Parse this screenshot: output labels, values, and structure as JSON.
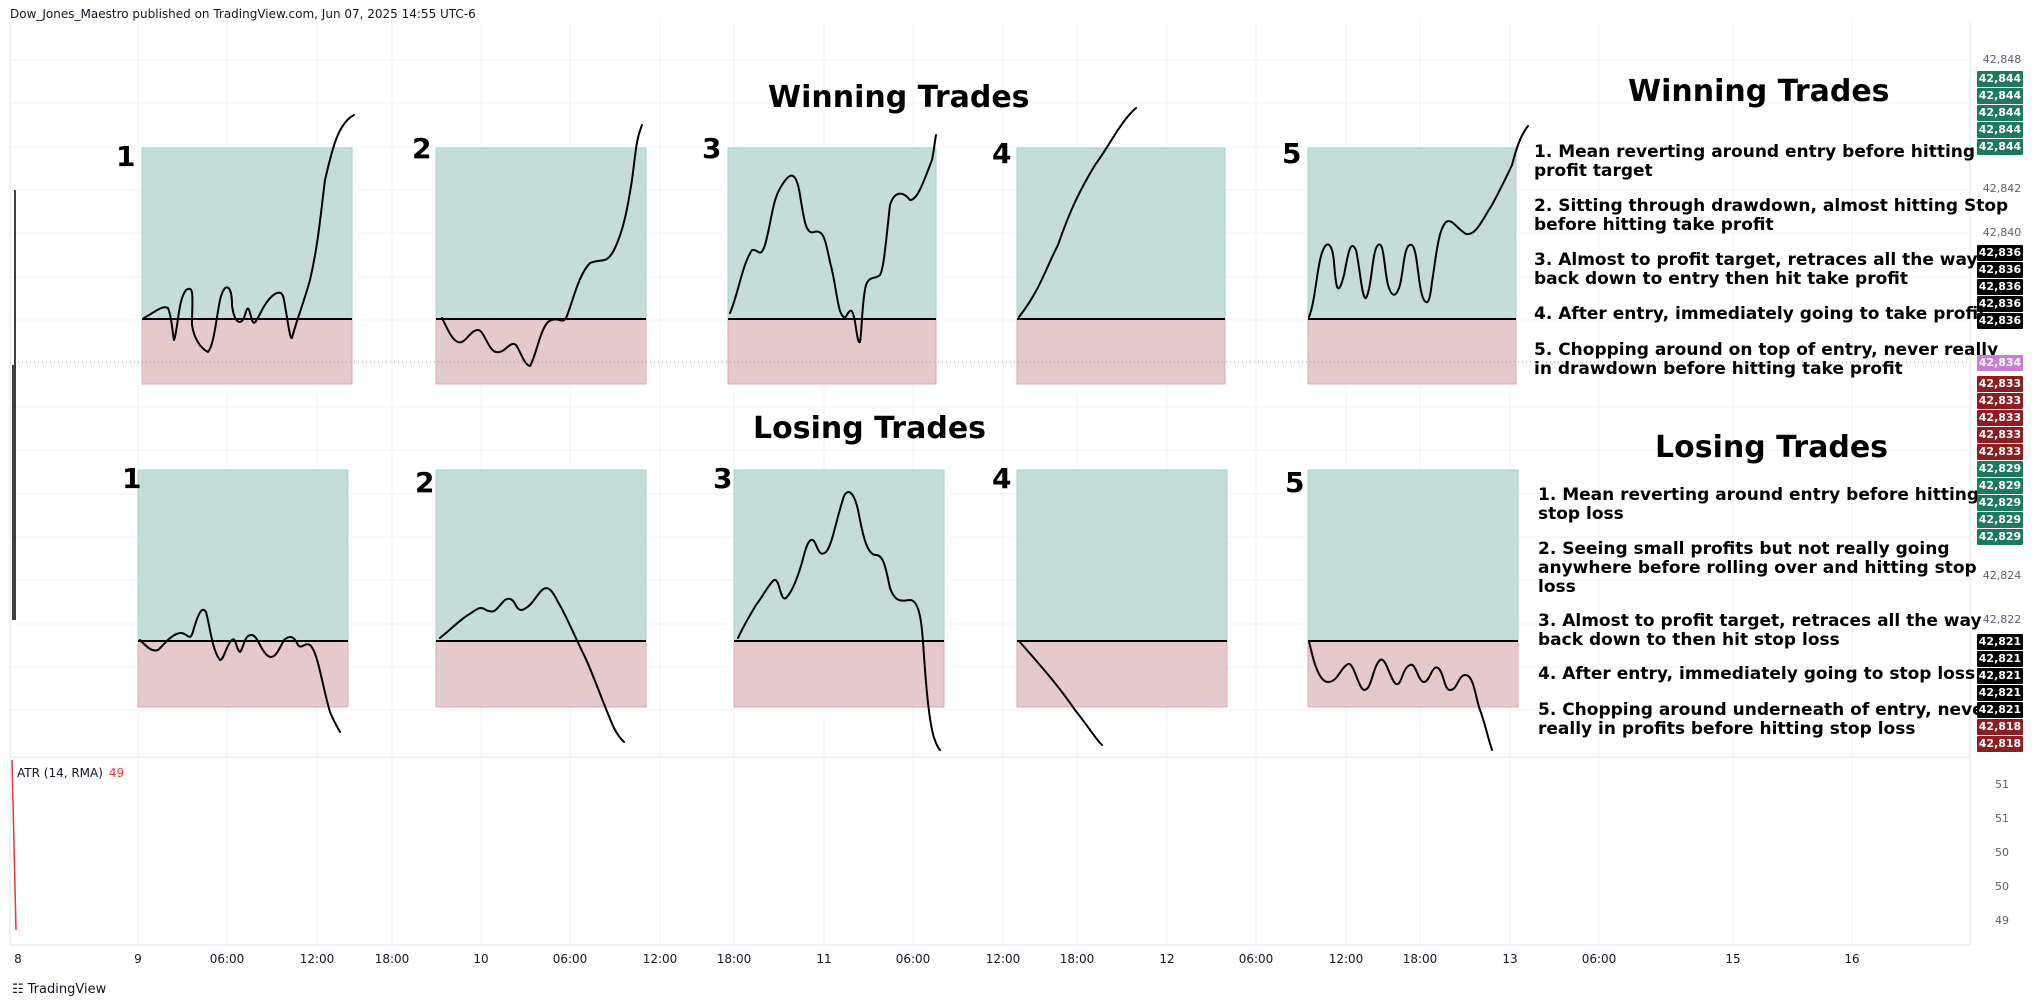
{
  "header": {
    "published": "Dow_Jones_Maestro published on TradingView.com, Jun 07, 2025 14:55 UTC-6"
  },
  "winning": {
    "left_title": "Winning Trades",
    "right_title": "Winning Trades",
    "panels": [
      "1",
      "2",
      "3",
      "4",
      "5"
    ],
    "descriptions": [
      [
        "1. Mean reverting around entry before hitting",
        "profit target"
      ],
      [
        "2. Sitting through drawdown, almost hitting Stop",
        "before hitting take profit"
      ],
      [
        "3. Almost to profit target, retraces all the way",
        "back down to entry then hit take profit"
      ],
      [
        "4. After entry, immediately going to take profit"
      ],
      [
        "5. Chopping around on top of entry, never really",
        "in drawdown before hitting take profit"
      ]
    ]
  },
  "losing": {
    "left_title": "Losing Trades",
    "right_title": "Losing Trades",
    "panels": [
      "1",
      "2",
      "3",
      "4",
      "5"
    ],
    "descriptions": [
      [
        "1. Mean reverting around entry before hitting",
        "stop loss"
      ],
      [
        "2. Seeing small profits but not really going",
        "anywhere before rolling over and hitting stop",
        "loss"
      ],
      [
        "3. Almost to profit target, retraces all the way",
        "back down to then hit stop loss"
      ],
      [
        "4. After entry, immediately going to stop loss"
      ],
      [
        "5. Chopping around underneath of entry, never",
        "really in profits before hitting stop loss"
      ]
    ]
  },
  "price_axis": {
    "labels": [
      "42,848",
      "42,842",
      "42,840",
      "42,824",
      "42,822"
    ],
    "green_boxes_top": [
      "42,844",
      "42,844",
      "42,844",
      "42,844",
      "42,844"
    ],
    "black_boxes_top": [
      "42,836",
      "42,836",
      "42,836",
      "42,836",
      "42,836"
    ],
    "current_price": "42,834",
    "red_boxes_top": [
      "42,833",
      "42,833",
      "42,833",
      "42,833",
      "42,833"
    ],
    "green_boxes_bottom": [
      "42,829",
      "42,829",
      "42,829",
      "42,829",
      "42,829"
    ],
    "black_boxes_bottom": [
      "42,821",
      "42,821",
      "42,821",
      "42,821",
      "42,821"
    ],
    "red_boxes_bottom": [
      "42,818",
      "42,818"
    ],
    "colors": {
      "green": "#1e7a5e",
      "black": "#000000",
      "red": "#8e1c21",
      "current": "#c77fd6"
    }
  },
  "time_axis": [
    "8",
    "9",
    "06:00",
    "12:00",
    "18:00",
    "10",
    "06:00",
    "12:00",
    "18:00",
    "11",
    "06:00",
    "12:00",
    "18:00",
    "12",
    "06:00",
    "12:00",
    "18:00",
    "13",
    "06:00",
    "15",
    "16"
  ],
  "atr": {
    "name": "ATR (14, RMA)",
    "value": "49",
    "axis": [
      "51",
      "51",
      "50",
      "50",
      "49"
    ]
  },
  "footer": {
    "logo": "TradingView"
  },
  "colors": {
    "profit_zone": "#c4ddd9",
    "loss_zone": "#e6c9cd",
    "line": "#000000"
  }
}
